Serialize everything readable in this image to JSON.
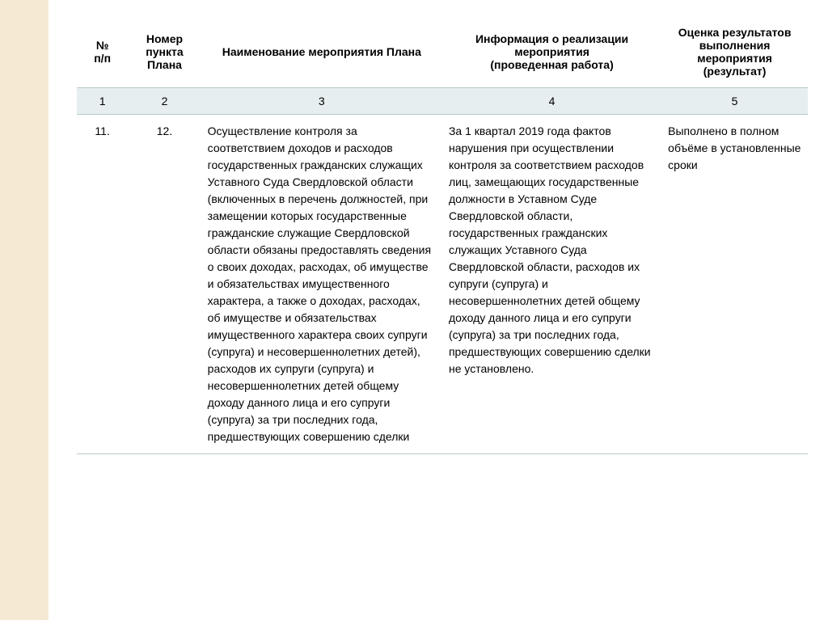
{
  "table": {
    "columns": [
      {
        "label": "№\nп/п",
        "width": "7%",
        "align": "center"
      },
      {
        "label": "Номер пункта Плана",
        "width": "10%",
        "align": "center"
      },
      {
        "label": "Наименование мероприятия Плана",
        "width": "33%",
        "align": "center"
      },
      {
        "label": "Информация о реализации мероприятия\n(проведенная работа)",
        "width": "30%",
        "align": "center"
      },
      {
        "label": "Оценка результатов выполнения мероприятия (результат)",
        "width": "20%",
        "align": "center"
      }
    ],
    "header_numbers": [
      "1",
      "2",
      "3",
      "4",
      "5"
    ],
    "rows": [
      {
        "num": "11.",
        "plan_num": "12.",
        "name": "Осуществление контроля за соответствием доходов и расходов государственных гражданских служащих Уставного Суда Свердловской области (включенных в перечень должностей, при замещении которых государственные гражданские служащие Свердловской области обязаны предоставлять сведения о своих доходах, расходах, об имуществе и обязательствах имущественного характера, а также о доходах, расходах, об имуществе и обязательствах имущественного характера своих супруги (супруга) и несовершеннолетних детей), расходов их супруги (супруга) и несовершеннолетних детей общему доходу данного лица и его супруги (супруга) за три последних года, предшествующих совершению сделки",
        "info": "За 1 квартал 2019 года фактов нарушения при осуществлении контроля за соответствием расходов лиц, замещающих государственные должности в Уставном Суде Свердловской области, государственных гражданских служащих Уставного Суда Свердловской области, расходов их супруги (супруга) и несовершеннолетних детей общему доходу данного лица и его супруги (супруга) за три последних года, предшествующих совершению сделки не установлено.",
        "result": "Выполнено в полном объёме в установленные сроки"
      }
    ],
    "colors": {
      "stripe_bg": "#f5e9d4",
      "num_row_bg": "#e6eeef",
      "border": "#b8c9cb",
      "text": "#000000",
      "page_bg": "#ffffff"
    },
    "typography": {
      "font_family": "Arial",
      "header_fontsize": 14,
      "header_weight": "bold",
      "body_fontsize": 14,
      "line_height": 1.5
    }
  }
}
